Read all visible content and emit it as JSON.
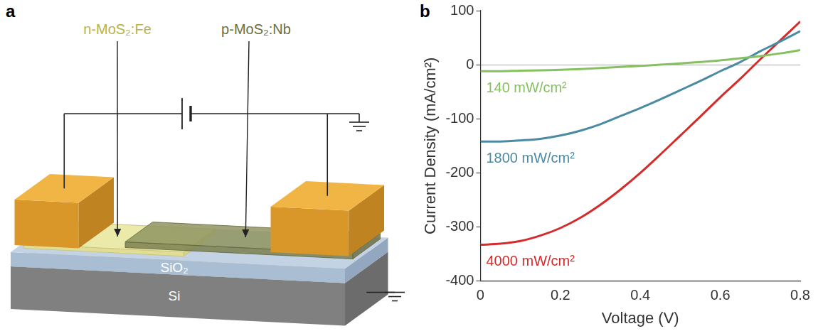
{
  "diagram": {
    "panel_label": "a",
    "labels": {
      "n_layer": "n-MoS₂:Fe",
      "p_layer": "p-MoS₂:Nb",
      "oxide": "SiO₂",
      "substrate": "Si"
    }
  },
  "chart_data": {
    "type": "line",
    "panel_label": "b",
    "x_label": "Voltage (V)",
    "y_label": "Current Density (mA/cm²)",
    "x": [
      0,
      0.05,
      0.1,
      0.15,
      0.2,
      0.25,
      0.3,
      0.35,
      0.4,
      0.45,
      0.5,
      0.55,
      0.6,
      0.65,
      0.7,
      0.75,
      0.8
    ],
    "series": [
      {
        "name": "140 mW/cm²",
        "color": "#86c060",
        "values": [
          -12,
          -12,
          -11,
          -10.5,
          -9.5,
          -8,
          -6,
          -4,
          -2,
          0,
          2.5,
          5,
          8,
          12,
          16,
          21,
          27
        ]
      },
      {
        "name": "1800 mW/cm²",
        "color": "#4a8aa3",
        "values": [
          -142,
          -142,
          -140,
          -137,
          -131,
          -122,
          -110,
          -95,
          -80,
          -64,
          -47,
          -30,
          -12,
          5,
          25,
          43,
          62
        ]
      },
      {
        "name": "4000 mW/cm²",
        "color": "#d52b2b",
        "values": [
          -333,
          -331,
          -326,
          -316,
          -302,
          -283,
          -259,
          -231,
          -200,
          -166,
          -131,
          -96,
          -60,
          -26,
          10,
          45,
          80
        ]
      }
    ],
    "xlim": [
      0,
      0.8
    ],
    "xticks": [
      0,
      0.2,
      0.4,
      0.6,
      0.8
    ],
    "ylim": [
      -400,
      100
    ],
    "yticks": [
      -400,
      -300,
      -200,
      -100,
      0,
      100
    ],
    "grid": false
  }
}
